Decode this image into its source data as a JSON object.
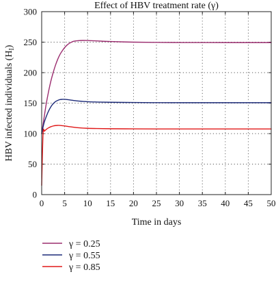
{
  "chart_data": {
    "type": "line",
    "title": "Effect of HBV treatment rate (γ)",
    "xlabel": "Time in days",
    "ylabel": "HBV infected individuals (H",
    "ylabel_subscript": "I",
    "ylabel_suffix": ")",
    "xlim": [
      0,
      50
    ],
    "ylim": [
      0,
      300
    ],
    "xticks": [
      0,
      5,
      10,
      15,
      20,
      25,
      30,
      35,
      40,
      45,
      50
    ],
    "yticks": [
      0,
      50,
      100,
      150,
      200,
      250,
      300
    ],
    "grid": true,
    "legend_position": "bottom-left, below plot",
    "series": [
      {
        "name": "γ = 0.25",
        "color": "#9b2d6f",
        "x": [
          0,
          0.5,
          1,
          1.5,
          2,
          2.5,
          3,
          3.5,
          4,
          4.5,
          5,
          5.5,
          6,
          6.5,
          7,
          8,
          9,
          10,
          12,
          15,
          20,
          25,
          30,
          40,
          50
        ],
        "y": [
          100,
          125,
          149,
          169,
          186,
          200,
          212,
          222,
          230,
          236,
          241,
          245,
          248,
          250,
          251.5,
          252.5,
          252.8,
          252.6,
          252,
          251,
          250,
          249.6,
          249.4,
          249.3,
          249.3
        ]
      },
      {
        "name": "γ = 0.55",
        "color": "#1c2a78",
        "x": [
          0,
          0.5,
          1,
          1.5,
          2,
          2.5,
          3,
          3.5,
          4,
          4.5,
          5,
          6,
          7,
          8,
          10,
          12,
          15,
          20,
          25,
          30,
          40,
          50
        ],
        "y": [
          100,
          117,
          128,
          137,
          144,
          149,
          152.5,
          154.5,
          155.8,
          156.2,
          156.2,
          155.4,
          154.3,
          153.4,
          152.3,
          151.8,
          151.4,
          151,
          150.8,
          150.7,
          150.7,
          150.7
        ]
      },
      {
        "name": "γ = 0.85",
        "color": "#e01818",
        "x": [
          0,
          0.3,
          0.6,
          1,
          1.5,
          2,
          2.5,
          3,
          3.5,
          4,
          5,
          6,
          7,
          8,
          10,
          12,
          15,
          20,
          25,
          30,
          40,
          50
        ],
        "y": [
          15,
          100,
          104,
          107,
          109.5,
          111.3,
          112.5,
          113.2,
          113.5,
          113.4,
          112.6,
          111.5,
          110.4,
          109.6,
          108.7,
          108.3,
          108,
          107.8,
          107.7,
          107.7,
          107.7,
          107.7
        ]
      }
    ]
  }
}
